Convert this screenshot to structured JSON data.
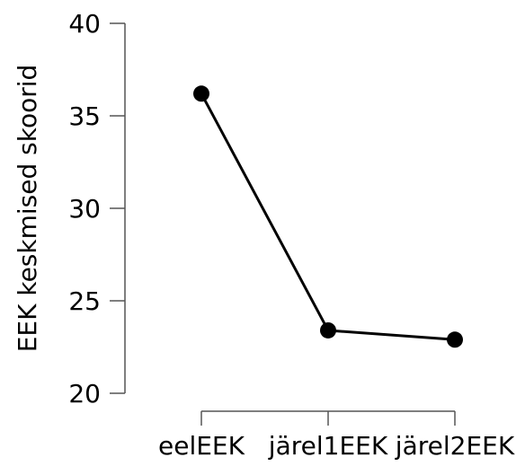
{
  "chart_data": {
    "type": "line",
    "title": "",
    "xlabel": "",
    "ylabel": "EEK keskmised skoorid",
    "categories": [
      "eelEEK",
      "järel1EEK",
      "järel2EEK"
    ],
    "series": [
      {
        "values": [
          36.2,
          23.4,
          22.9
        ]
      }
    ],
    "ylim": [
      20,
      40
    ],
    "yticks": [
      "20",
      "25",
      "30",
      "35",
      "40"
    ],
    "grid": false,
    "colors": {
      "line": "#000000",
      "point": "#000000",
      "axis": "#555555"
    }
  }
}
